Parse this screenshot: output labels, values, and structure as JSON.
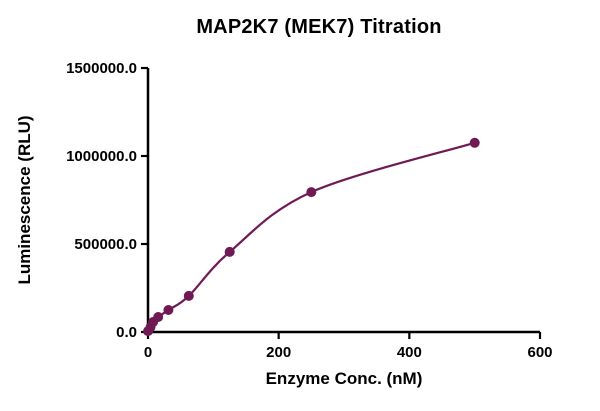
{
  "chart_data": {
    "type": "scatter",
    "title": "MAP2K7 (MEK7) Titration",
    "xlabel": "Enzyme Conc. (nM)",
    "ylabel": "Luminescence (RLU)",
    "xlim": [
      0,
      600
    ],
    "ylim": [
      0,
      1500000
    ],
    "grid": false,
    "legend": false,
    "x_ticks": [
      {
        "value": 0,
        "label": "0"
      },
      {
        "value": 200,
        "label": "200"
      },
      {
        "value": 400,
        "label": "400"
      },
      {
        "value": 600,
        "label": "600"
      }
    ],
    "y_ticks": [
      {
        "value": 0,
        "label": "0.0"
      },
      {
        "value": 500000,
        "label": "500000.0"
      },
      {
        "value": 1000000,
        "label": "1000000.0"
      },
      {
        "value": 1500000,
        "label": "1500000.0"
      }
    ],
    "series": [
      {
        "name": "MAP2K7 (MEK7)",
        "color": "#6f1a55",
        "marker": "circle",
        "fit": "smooth-curve-through-points",
        "x": [
          0,
          3.9,
          7.8,
          15.6,
          31.25,
          62.5,
          125,
          250,
          500
        ],
        "y": [
          5000,
          28000,
          57000,
          85000,
          125000,
          205000,
          455000,
          795000,
          1075000
        ]
      }
    ]
  }
}
